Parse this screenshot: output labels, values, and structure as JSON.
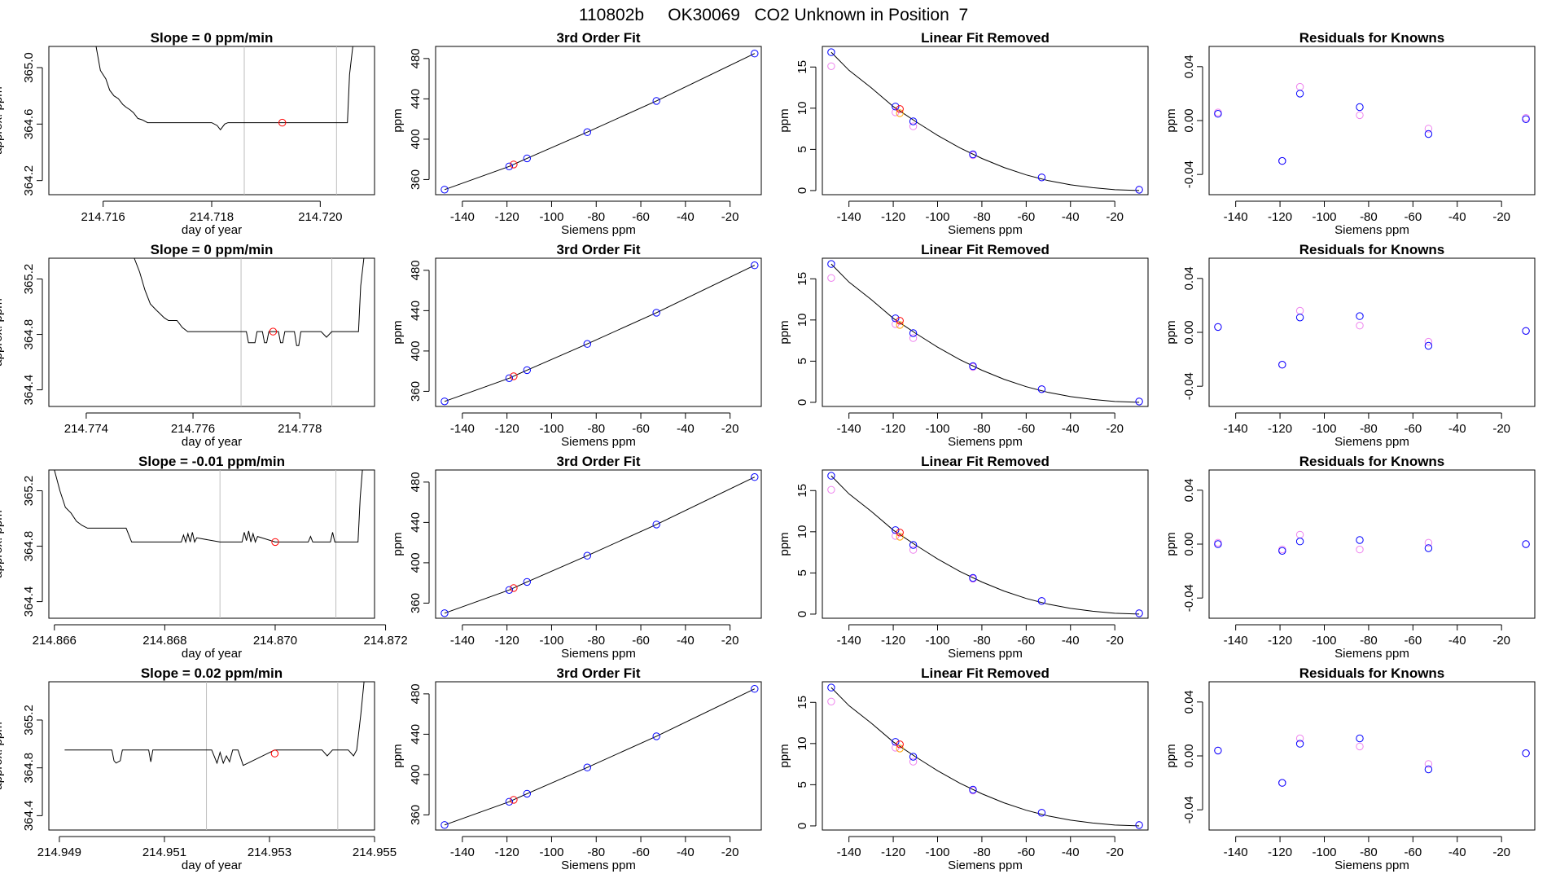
{
  "title": "110802b     OK30069   CO2 Unknown in Position  7",
  "colors": {
    "line": "#000000",
    "vline": "#bebebe",
    "red": "#ff0000",
    "blue": "#0000ff",
    "violet": "#ee82ee",
    "orange": "#ffa500"
  },
  "chart_data": [
    {
      "type": "line",
      "row": 0,
      "title": "Slope =  0  ppm/min",
      "xlabel": "day of year",
      "ylabel": "approx. ppm",
      "xlim": [
        214.715,
        214.721
      ],
      "ylim": [
        364.1,
        365.15
      ],
      "xticks": [
        214.716,
        214.718,
        214.72
      ],
      "xtick_labels": [
        "214.716",
        "214.718",
        "214.720"
      ],
      "yticks": [
        364.2,
        364.6,
        365.0
      ],
      "ytick_labels": [
        "364.2",
        "364.6",
        "365.0"
      ],
      "vlines": [
        214.7186,
        214.7203
      ],
      "marker": {
        "x": 214.7193,
        "y": 364.61
      },
      "trace_x": [
        214.71587,
        214.71595,
        214.71605,
        214.71612,
        214.7162,
        214.71628,
        214.71636,
        214.71642,
        214.7165,
        214.71656,
        214.71664,
        214.71672,
        214.71682,
        214.717,
        214.7175,
        214.718,
        214.7181,
        214.71816,
        214.71824,
        214.7183,
        214.719,
        214.72,
        214.7205,
        214.72054,
        214.7206
      ],
      "trace_y": [
        365.15,
        364.98,
        364.92,
        364.84,
        364.8,
        364.78,
        364.74,
        364.72,
        364.7,
        364.68,
        364.64,
        364.63,
        364.61,
        364.61,
        364.61,
        364.61,
        364.59,
        364.56,
        364.6,
        364.61,
        364.61,
        364.61,
        364.61,
        364.95,
        365.15
      ]
    },
    {
      "type": "line",
      "row": 1,
      "title": "Slope =  0  ppm/min",
      "xlabel": "day of year",
      "ylabel": "approx. ppm",
      "xlim": [
        214.7733,
        214.7794
      ],
      "ylim": [
        364.28,
        365.35
      ],
      "xticks": [
        214.774,
        214.776,
        214.778
      ],
      "xtick_labels": [
        "214.774",
        "214.776",
        "214.778"
      ],
      "yticks": [
        364.4,
        364.8,
        365.2
      ],
      "ytick_labels": [
        "364.4",
        "364.8",
        "365.2"
      ],
      "vlines": [
        214.7769,
        214.7786
      ],
      "marker": {
        "x": 214.7775,
        "y": 364.82
      },
      "trace_x": [
        214.7749,
        214.775,
        214.7751,
        214.7752,
        214.7753,
        214.77538,
        214.77546,
        214.77554,
        214.7756,
        214.7757,
        214.7758,
        214.7759,
        214.777,
        214.77704,
        214.7771,
        214.77716,
        214.7772,
        214.7773,
        214.77734,
        214.77738,
        214.77742,
        214.77746,
        214.7775,
        214.7776,
        214.77764,
        214.77768,
        214.77772,
        214.77776,
        214.7778,
        214.7779,
        214.77794,
        214.77798,
        214.77802,
        214.77806,
        214.7781,
        214.7782,
        214.7784,
        214.7785,
        214.7786,
        214.7788,
        214.7789,
        214.779,
        214.7791,
        214.77914,
        214.7792
      ],
      "trace_y": [
        365.35,
        365.25,
        365.12,
        365.02,
        364.98,
        364.95,
        364.92,
        364.9,
        364.9,
        364.9,
        364.85,
        364.82,
        364.82,
        364.74,
        364.74,
        364.74,
        364.82,
        364.82,
        364.74,
        364.74,
        364.82,
        364.82,
        364.82,
        364.82,
        364.74,
        364.74,
        364.82,
        364.82,
        364.82,
        364.82,
        364.72,
        364.72,
        364.82,
        364.82,
        364.82,
        364.82,
        364.82,
        364.78,
        364.82,
        364.82,
        364.82,
        364.82,
        364.82,
        365.15,
        365.35
      ]
    },
    {
      "type": "line",
      "row": 2,
      "title": "Slope =  -0.01  ppm/min",
      "xlabel": "day of year",
      "ylabel": "approx. ppm",
      "xlim": [
        214.8659,
        214.8718
      ],
      "ylim": [
        364.28,
        365.35
      ],
      "xticks": [
        214.866,
        214.868,
        214.87,
        214.872
      ],
      "xtick_labels": [
        "214.866",
        "214.868",
        "214.870",
        "214.872"
      ],
      "yticks": [
        364.4,
        364.8,
        365.2
      ],
      "ytick_labels": [
        "364.4",
        "364.8",
        "365.2"
      ],
      "vlines": [
        214.869,
        214.8711
      ],
      "marker": {
        "x": 214.87,
        "y": 364.83
      },
      "trace_x": [
        214.866,
        214.8661,
        214.8662,
        214.8663,
        214.8664,
        214.8665,
        214.8666,
        214.867,
        214.8673,
        214.8674,
        214.8683,
        214.86834,
        214.86838,
        214.86842,
        214.86846,
        214.8685,
        214.86854,
        214.86858,
        214.869,
        214.8694,
        214.86944,
        214.86948,
        214.86952,
        214.86956,
        214.8696,
        214.86964,
        214.86968,
        214.87,
        214.8706,
        214.87064,
        214.87068,
        214.871,
        214.87104,
        214.87108,
        214.8715,
        214.87154,
        214.87158
      ],
      "trace_y": [
        365.35,
        365.2,
        365.08,
        365.04,
        364.98,
        364.95,
        364.93,
        364.93,
        364.93,
        364.83,
        364.83,
        364.88,
        364.83,
        364.89,
        364.83,
        364.9,
        364.83,
        364.86,
        364.83,
        364.83,
        364.9,
        364.84,
        364.91,
        364.83,
        364.89,
        364.83,
        364.87,
        364.83,
        364.83,
        364.87,
        364.83,
        364.83,
        364.9,
        364.83,
        364.83,
        365.15,
        365.35
      ]
    },
    {
      "type": "line",
      "row": 3,
      "title": "Slope =  0.02  ppm/min",
      "xlabel": "day of year",
      "ylabel": "approx. ppm",
      "xlim": [
        214.9488,
        214.955
      ],
      "ylim": [
        364.28,
        365.52
      ],
      "xticks": [
        214.949,
        214.951,
        214.953,
        214.955
      ],
      "xtick_labels": [
        "214.949",
        "214.951",
        "214.953",
        "214.955"
      ],
      "yticks": [
        364.4,
        364.8,
        365.2
      ],
      "ytick_labels": [
        "364.4",
        "364.8",
        "365.2"
      ],
      "vlines": [
        214.9518,
        214.9543
      ],
      "marker": {
        "x": 214.9531,
        "y": 364.92
      },
      "trace_x": [
        214.9491,
        214.95,
        214.95004,
        214.95008,
        214.95016,
        214.9502,
        214.9507,
        214.95074,
        214.95078,
        214.9518,
        214.9519,
        214.952,
        214.95206,
        214.95212,
        214.95218,
        214.95224,
        214.9523,
        214.9524,
        214.9525,
        214.9531,
        214.9532,
        214.954,
        214.9541,
        214.9542,
        214.9545,
        214.9546,
        214.95466,
        214.95474,
        214.9548
      ],
      "trace_y": [
        364.95,
        364.95,
        364.86,
        364.84,
        364.86,
        364.95,
        364.95,
        364.85,
        364.95,
        364.95,
        364.95,
        364.84,
        364.93,
        364.84,
        364.9,
        364.85,
        364.95,
        364.95,
        364.82,
        364.95,
        364.95,
        364.95,
        364.9,
        364.95,
        364.95,
        364.9,
        364.95,
        365.25,
        365.52
      ]
    }
  ],
  "fit_panel": {
    "type": "scatter",
    "title": "3rd Order Fit",
    "xlabel": "Siemens ppm",
    "ylabel": "ppm",
    "xlim": [
      -152,
      -6
    ],
    "ylim": [
      345,
      492
    ],
    "xticks": [
      -140,
      -120,
      -100,
      -80,
      -60,
      -40,
      -20
    ],
    "xtick_labels": [
      "-140",
      "-120",
      "-100",
      "-80",
      "-60",
      "-40",
      "-20"
    ],
    "yticks": [
      360,
      400,
      440,
      480
    ],
    "ytick_labels": [
      "360",
      "400",
      "440",
      "480"
    ],
    "line_x": [
      -148,
      -119,
      -111,
      -84,
      -53,
      -9
    ],
    "line_y": [
      350,
      373,
      381,
      407,
      438,
      485
    ],
    "blue_x": [
      -148,
      -119,
      -111,
      -84,
      -53,
      -9
    ],
    "blue_y": [
      350,
      373,
      381,
      407,
      438,
      485
    ],
    "red": {
      "x": -117,
      "y": 375
    }
  },
  "linear_panel": {
    "type": "scatter",
    "title": "Linear Fit Removed",
    "xlabel": "Siemens ppm",
    "ylabel": "ppm",
    "xlim": [
      -152,
      -5
    ],
    "ylim": [
      -0.5,
      17.5
    ],
    "xticks": [
      -140,
      -120,
      -100,
      -80,
      -60,
      -40,
      -20
    ],
    "xtick_labels": [
      "-140",
      "-120",
      "-100",
      "-80",
      "-60",
      "-40",
      "-20"
    ],
    "yticks": [
      0,
      5,
      10,
      15
    ],
    "ytick_labels": [
      "0",
      "5",
      "10",
      "15"
    ],
    "curve_x": [
      -148,
      -140,
      -130,
      -120,
      -110,
      -100,
      -90,
      -80,
      -70,
      -60,
      -50,
      -40,
      -30,
      -20,
      -9
    ],
    "curve_y": [
      16.8,
      14.6,
      12.5,
      10.2,
      8.4,
      6.7,
      5.2,
      3.9,
      2.8,
      1.9,
      1.2,
      0.7,
      0.35,
      0.1,
      0.0
    ],
    "blue_x": [
      -148,
      -119,
      -111,
      -84,
      -53,
      -9
    ],
    "blue_y": [
      16.8,
      10.2,
      8.4,
      4.4,
      1.6,
      0.1
    ],
    "violet_x": [
      -148,
      -119,
      -111,
      -84,
      -53,
      -9
    ],
    "violet_y": [
      15.1,
      9.5,
      7.8,
      4.3,
      1.6,
      0.1
    ],
    "orange": {
      "x": -117,
      "y": 9.4
    },
    "red": {
      "x": -117,
      "y": 9.9
    }
  },
  "residual_panels": [
    {
      "type": "scatter",
      "title": "Residuals for Knowns",
      "xlabel": "Siemens ppm",
      "ylabel": "ppm",
      "xlim": [
        -152,
        -5
      ],
      "ylim": [
        -0.055,
        0.055
      ],
      "xticks": [
        -140,
        -120,
        -100,
        -80,
        -60,
        -40,
        -20
      ],
      "xtick_labels": [
        "-140",
        "-120",
        "-100",
        "-80",
        "-60",
        "-40",
        "-20"
      ],
      "yticks": [
        -0.04,
        0.0,
        0.04
      ],
      "ytick_labels": [
        "-0.04",
        "0.00",
        "0.04"
      ],
      "x": [
        -148,
        -119,
        -111,
        -84,
        -53,
        -9
      ],
      "blue": [
        0.005,
        -0.03,
        0.02,
        0.01,
        -0.01,
        0.001
      ],
      "violet": [
        0.006,
        -0.03,
        0.025,
        0.004,
        -0.006,
        0.002
      ]
    },
    {
      "type": "scatter",
      "title": "Residuals for Knowns",
      "xlabel": "Siemens ppm",
      "ylabel": "ppm",
      "xlim": [
        -152,
        -5
      ],
      "ylim": [
        -0.055,
        0.055
      ],
      "xticks": [
        -140,
        -120,
        -100,
        -80,
        -60,
        -40,
        -20
      ],
      "xtick_labels": [
        "-140",
        "-120",
        "-100",
        "-80",
        "-60",
        "-40",
        "-20"
      ],
      "yticks": [
        -0.04,
        0.0,
        0.04
      ],
      "ytick_labels": [
        "-0.04",
        "0.00",
        "0.04"
      ],
      "x": [
        -148,
        -119,
        -111,
        -84,
        -53,
        -9
      ],
      "blue": [
        0.004,
        -0.024,
        0.011,
        0.012,
        -0.01,
        0.001
      ],
      "violet": [
        0.004,
        -0.024,
        0.016,
        0.005,
        -0.007,
        0.001
      ]
    },
    {
      "type": "scatter",
      "title": "Residuals for Knowns",
      "xlabel": "Siemens ppm",
      "ylabel": "ppm",
      "xlim": [
        -152,
        -5
      ],
      "ylim": [
        -0.055,
        0.055
      ],
      "xticks": [
        -140,
        -120,
        -100,
        -80,
        -60,
        -40,
        -20
      ],
      "xtick_labels": [
        "-140",
        "-120",
        "-100",
        "-80",
        "-60",
        "-40",
        "-20"
      ],
      "yticks": [
        -0.04,
        0.0,
        0.04
      ],
      "ytick_labels": [
        "-0.04",
        "0.00",
        "0.04"
      ],
      "x": [
        -148,
        -119,
        -111,
        -84,
        -53,
        -9
      ],
      "blue": [
        0.0,
        -0.005,
        0.002,
        0.003,
        -0.003,
        0.0
      ],
      "violet": [
        0.001,
        -0.004,
        0.007,
        -0.004,
        0.001,
        0.0
      ]
    },
    {
      "type": "scatter",
      "title": "Residuals for Knowns",
      "xlabel": "Siemens ppm",
      "ylabel": "ppm",
      "xlim": [
        -152,
        -5
      ],
      "ylim": [
        -0.055,
        0.055
      ],
      "xticks": [
        -140,
        -120,
        -100,
        -80,
        -60,
        -40,
        -20
      ],
      "xtick_labels": [
        "-140",
        "-120",
        "-100",
        "-80",
        "-60",
        "-40",
        "-20"
      ],
      "yticks": [
        -0.04,
        0.0,
        0.04
      ],
      "ytick_labels": [
        "-0.04",
        "0.00",
        "0.04"
      ],
      "x": [
        -148,
        -119,
        -111,
        -84,
        -53,
        -9
      ],
      "blue": [
        0.004,
        -0.02,
        0.009,
        0.013,
        -0.01,
        0.002
      ],
      "violet": [
        0.004,
        -0.02,
        0.013,
        0.007,
        -0.006,
        0.002
      ]
    }
  ]
}
